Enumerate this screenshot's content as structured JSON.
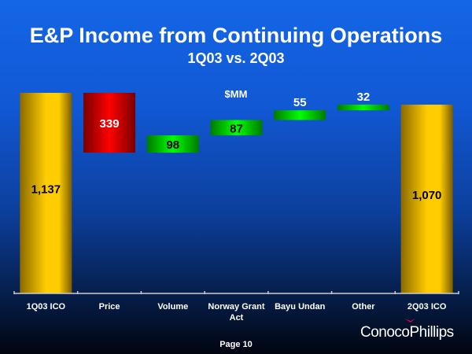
{
  "title": "E&P Income from Continuing Operations",
  "subtitle": "1Q03 vs. 2Q03",
  "footer": {
    "page": "Page 10",
    "logo": "ConocoPhillips"
  },
  "chart_data": {
    "type": "waterfall",
    "unit_label": "$MM",
    "categories": [
      "1Q03 ICO",
      "Price",
      "Volume",
      "Norway Grant Act",
      "Bayu Undan",
      "Other",
      "2Q03 ICO"
    ],
    "values": [
      1137,
      -339,
      98,
      87,
      55,
      32,
      1070
    ],
    "kinds": [
      "total",
      "delta",
      "delta",
      "delta",
      "delta",
      "delta",
      "total"
    ],
    "labels": [
      "1,137",
      "339",
      "98",
      "87",
      "55",
      "32",
      "1,070"
    ],
    "ylim": [
      0,
      1137
    ],
    "grid": false,
    "colors": {
      "total": "#ffcc00",
      "negative": "#ff0000",
      "positive": "#00ff00"
    }
  }
}
